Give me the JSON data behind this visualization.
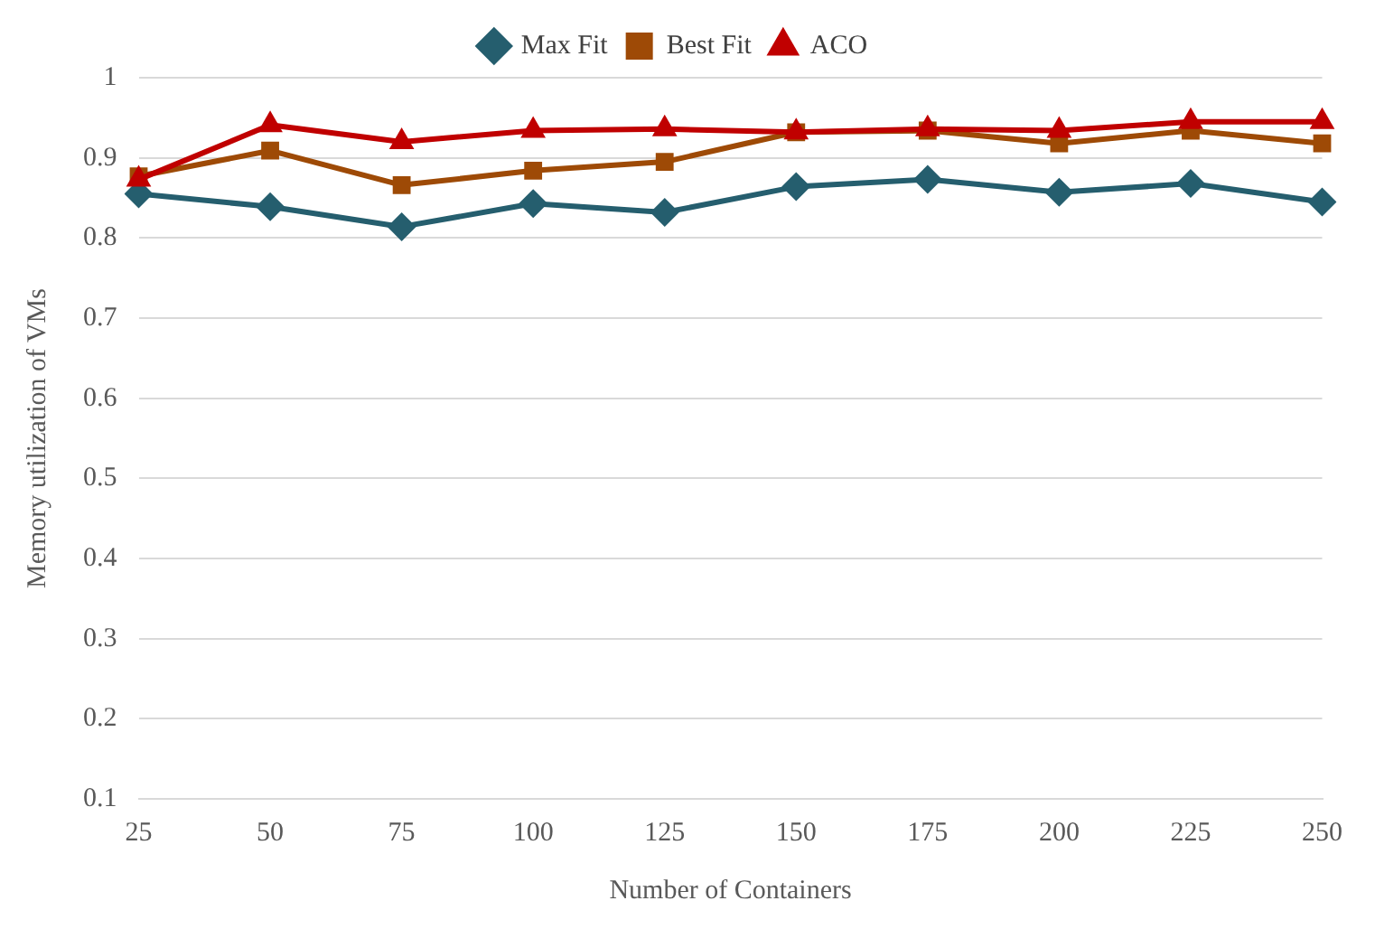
{
  "chart_data": {
    "type": "line",
    "xlabel": "Number of Containers",
    "ylabel": "Memory utilization of VMs",
    "categories": [
      "25",
      "50",
      "75",
      "100",
      "125",
      "150",
      "175",
      "200",
      "225",
      "250"
    ],
    "series": [
      {
        "name": "Max Fit",
        "color": "#255e6e",
        "marker": "diamond",
        "values": [
          0.855,
          0.839,
          0.814,
          0.843,
          0.832,
          0.864,
          0.873,
          0.857,
          0.868,
          0.845
        ]
      },
      {
        "name": "Best Fit",
        "color": "#9e4a06",
        "marker": "square",
        "values": [
          0.877,
          0.909,
          0.866,
          0.884,
          0.895,
          0.932,
          0.934,
          0.918,
          0.934,
          0.918
        ]
      },
      {
        "name": "ACO",
        "color": "#c00000",
        "marker": "triangle",
        "values": [
          0.873,
          0.941,
          0.92,
          0.934,
          0.936,
          0.932,
          0.936,
          0.934,
          0.945,
          0.945
        ]
      }
    ],
    "ylim": [
      0.1,
      1
    ],
    "yticks": [
      0.1,
      0.2,
      0.3,
      0.4,
      0.5,
      0.6,
      0.7,
      0.8,
      0.9,
      1
    ],
    "grid": "y",
    "legend": "top",
    "line_style": "solid"
  }
}
